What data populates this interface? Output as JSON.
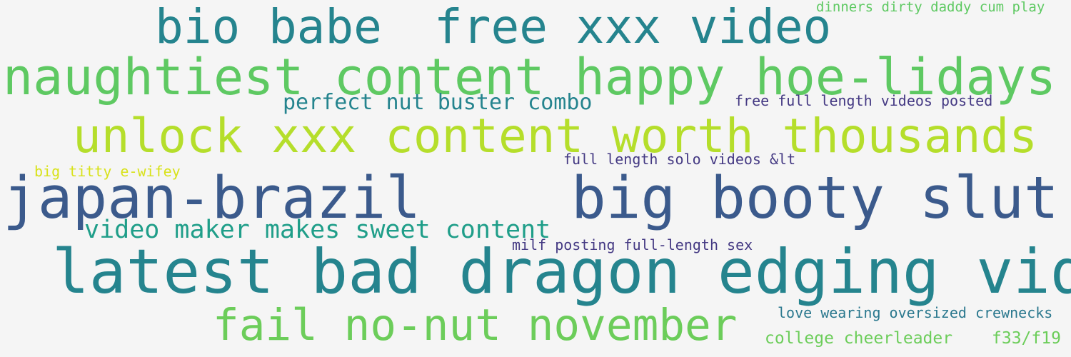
{
  "colors": {
    "background": "#f5f5f5",
    "dark_blue": "#3b5a8c",
    "teal": "#25848e",
    "green": "#5ec962",
    "lime": "#b5de2b",
    "yellow": "#d8e219",
    "purple": "#443983",
    "sea_green": "#1f9e89",
    "light_green": "#6ccd5a"
  },
  "words": [
    {
      "text": "bio babe",
      "color": "#25848e"
    },
    {
      "text": "free xxx video",
      "color": "#25848e"
    },
    {
      "text": "dinners dirty daddy cum play",
      "color": "#5ec962"
    },
    {
      "text": "naughtiest content happy hoe-lidays",
      "color": "#5ec962"
    },
    {
      "text": "perfect nut buster combo",
      "color": "#25848e"
    },
    {
      "text": "free full length videos posted",
      "color": "#443983"
    },
    {
      "text": "unlock xxx content worth thousands",
      "color": "#b5de2b"
    },
    {
      "text": "full length solo videos &lt",
      "color": "#443983"
    },
    {
      "text": "big titty e-wifey",
      "color": "#d8e219"
    },
    {
      "text": "japan-brazil",
      "color": "#3b5a8c"
    },
    {
      "text": "big booty slut",
      "color": "#3b5a8c"
    },
    {
      "text": "video maker makes sweet content",
      "color": "#1f9e89"
    },
    {
      "text": "milf posting full-length sex",
      "color": "#443983"
    },
    {
      "text": "latest bad dragon edging vid",
      "color": "#25848e"
    },
    {
      "text": "love wearing oversized crewnecks",
      "color": "#2a788e"
    },
    {
      "text": "fail no-nut november",
      "color": "#6ccd5a"
    },
    {
      "text": "college cheerleader",
      "color": "#6ccd5a"
    },
    {
      "text": "f33/f19",
      "color": "#6ccd5a"
    }
  ]
}
